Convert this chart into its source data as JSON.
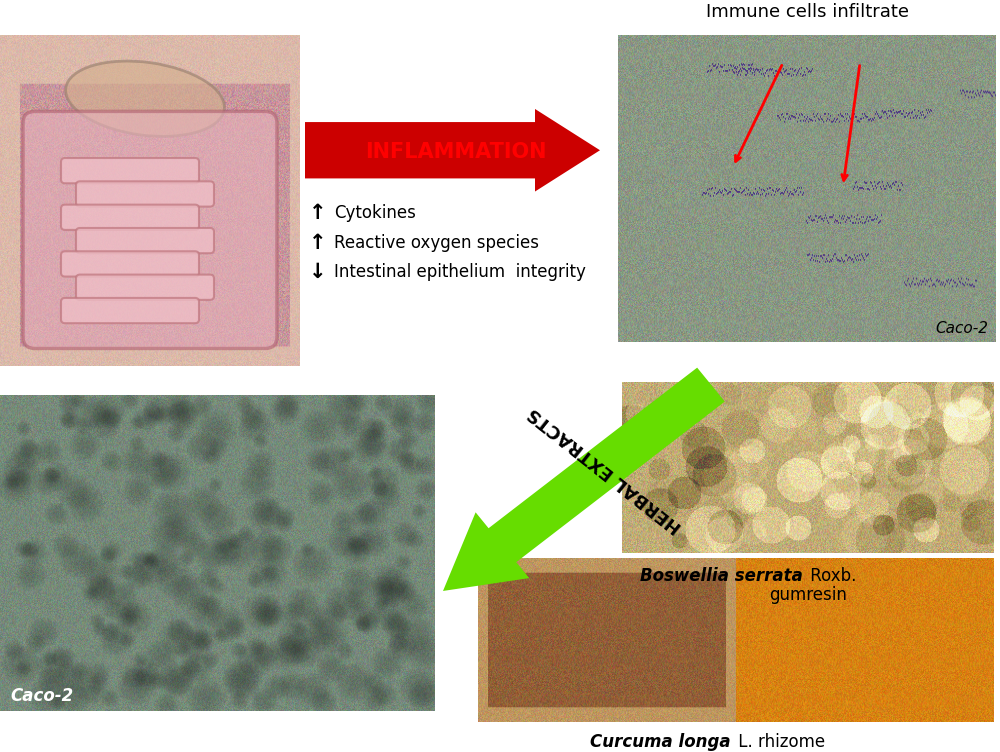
{
  "bg_color": "#ffffff",
  "inflammation_arrow_color": "#cc0000",
  "inflammation_text": "INFLAMMATION",
  "inflammation_text_color": "#ff0000",
  "herbal_arrow_color": "#66dd00",
  "herbal_text": "HERBAL EXTRACTS",
  "herbal_text_color": "#000000",
  "bullet_up": "↑",
  "bullet_down": "↓",
  "cytokines_text": "Cytokines",
  "ros_text": "Reactive oxygen species",
  "integrity_text": "Intestinal epithelium  integrity",
  "immune_label": "Immune cells infiltrate",
  "caco2_label_tr": "Caco-2",
  "caco2_label_bl": "Caco-2",
  "boswellia_label_italic": "Boswellia serrata",
  "boswellia_label_normal": "Roxb.",
  "boswellia_label2": "gumresin",
  "curcuma_label_italic": "Curcuma longa",
  "curcuma_label_normal": "L. rhizome"
}
